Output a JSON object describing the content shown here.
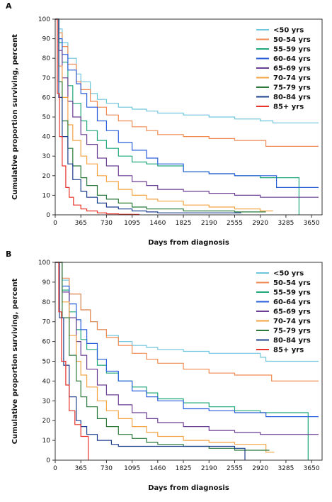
{
  "chart_data": [
    {
      "panel": "A",
      "type": "line",
      "xlabel": "Days from diagnosis",
      "ylabel": "Cumulative proportion surviving, percent",
      "xlim": [
        0,
        3800
      ],
      "ylim": [
        0,
        100
      ],
      "xticks": [
        0,
        365,
        730,
        1095,
        1460,
        1825,
        2190,
        2555,
        2920,
        3285,
        3650
      ],
      "yticks": [
        0,
        10,
        20,
        30,
        40,
        50,
        60,
        70,
        80,
        90,
        100
      ],
      "legend_position": "top-right",
      "series": [
        {
          "name": "<50 yrs",
          "color": "#6ec6dd",
          "x": [
            0,
            50,
            100,
            180,
            300,
            365,
            500,
            600,
            730,
            900,
            1095,
            1300,
            1460,
            1825,
            2190,
            2555,
            2920,
            3100,
            3650,
            3750
          ],
          "y": [
            100,
            95,
            88,
            80,
            72,
            68,
            62,
            59,
            57,
            55,
            54,
            53,
            52,
            51,
            50,
            49,
            48,
            47,
            47,
            47
          ]
        },
        {
          "name": "50-54 yrs",
          "color": "#f08a50",
          "x": [
            0,
            50,
            100,
            180,
            300,
            365,
            500,
            600,
            730,
            900,
            1095,
            1300,
            1460,
            1825,
            2190,
            2555,
            2920,
            3000,
            3650,
            3750
          ],
          "y": [
            100,
            93,
            86,
            77,
            68,
            64,
            58,
            55,
            51,
            48,
            45,
            43,
            41,
            40,
            39,
            38,
            38,
            35,
            35,
            35
          ]
        },
        {
          "name": "55-59 yrs",
          "color": "#1fa879",
          "x": [
            0,
            50,
            100,
            180,
            250,
            365,
            450,
            600,
            730,
            900,
            1095,
            1300,
            1460,
            1825,
            2190,
            2555,
            2920,
            3300,
            3470,
            3471
          ],
          "y": [
            100,
            88,
            78,
            66,
            57,
            48,
            43,
            38,
            34,
            30,
            27,
            26,
            25,
            22,
            21,
            20,
            19,
            19,
            19,
            0
          ]
        },
        {
          "name": "60-64 yrs",
          "color": "#2a5fdc",
          "x": [
            0,
            50,
            100,
            180,
            300,
            365,
            450,
            600,
            730,
            900,
            1095,
            1300,
            1460,
            1825,
            2190,
            2555,
            2920,
            3150,
            3151,
            3650,
            3750
          ],
          "y": [
            100,
            90,
            82,
            74,
            67,
            62,
            55,
            48,
            43,
            37,
            33,
            29,
            26,
            22,
            21,
            20,
            20,
            20,
            14,
            14,
            14
          ]
        },
        {
          "name": "65-69 yrs",
          "color": "#6b3d94",
          "x": [
            0,
            50,
            100,
            180,
            250,
            365,
            450,
            600,
            730,
            900,
            1095,
            1300,
            1460,
            1825,
            2190,
            2555,
            2920,
            3650,
            3750
          ],
          "y": [
            100,
            84,
            70,
            58,
            50,
            41,
            36,
            29,
            25,
            20,
            17,
            15,
            13,
            12,
            11,
            10,
            9,
            9,
            9
          ]
        },
        {
          "name": "70-74 yrs",
          "color": "#f4a444",
          "x": [
            0,
            50,
            100,
            180,
            250,
            365,
            450,
            600,
            730,
            900,
            1095,
            1300,
            1460,
            1825,
            2190,
            2555,
            2920,
            3100
          ],
          "y": [
            100,
            76,
            60,
            46,
            38,
            30,
            26,
            20,
            17,
            13,
            10,
            8,
            7,
            5,
            4,
            3,
            2,
            2
          ]
        },
        {
          "name": "75-79 yrs",
          "color": "#2b7a3b",
          "x": [
            0,
            50,
            100,
            180,
            250,
            365,
            450,
            600,
            730,
            900,
            1095,
            1300,
            1460,
            1825,
            2190,
            2555,
            2920,
            3000
          ],
          "y": [
            100,
            68,
            48,
            34,
            25,
            19,
            15,
            10,
            8,
            6,
            4,
            3,
            3,
            2,
            2,
            1.5,
            1.5,
            1.5
          ]
        },
        {
          "name": "80-84 yrs",
          "color": "#1d3f8f",
          "x": [
            0,
            50,
            100,
            180,
            250,
            365,
            450,
            600,
            730,
            900,
            1095,
            1300,
            1460,
            1825,
            2190,
            2555,
            2650
          ],
          "y": [
            100,
            60,
            40,
            26,
            18,
            12,
            9,
            6,
            4,
            3,
            2,
            1.5,
            1,
            1,
            1,
            1,
            1
          ]
        },
        {
          "name": "85+ yrs",
          "color": "#e8322a",
          "x": [
            0,
            30,
            60,
            100,
            150,
            200,
            260,
            365,
            450,
            600,
            730,
            900,
            1095,
            1200
          ],
          "y": [
            100,
            62,
            40,
            25,
            14,
            9,
            5,
            3,
            2,
            1,
            0.5,
            0.3,
            0.2,
            0.2
          ]
        }
      ]
    },
    {
      "panel": "B",
      "type": "line",
      "xlabel": "Days from diagnosis",
      "ylabel": "Cumulative proportion surviving, percent",
      "xlim": [
        0,
        3800
      ],
      "ylim": [
        0,
        100
      ],
      "xticks": [
        0,
        365,
        730,
        1095,
        1460,
        1825,
        2190,
        2555,
        2920,
        3285,
        3650
      ],
      "yticks": [
        0,
        10,
        20,
        30,
        40,
        50,
        60,
        70,
        80,
        90,
        100
      ],
      "legend_position": "top-right",
      "series": [
        {
          "name": "<50 yrs",
          "color": "#6ec6dd",
          "x": [
            0,
            100,
            200,
            365,
            500,
            600,
            730,
            900,
            1095,
            1300,
            1460,
            1825,
            2190,
            2555,
            2920,
            3000,
            3650,
            3750
          ],
          "y": [
            100,
            91,
            84,
            76,
            70,
            66,
            63,
            60,
            58,
            57,
            56,
            55,
            54,
            54,
            52,
            50,
            50,
            50
          ]
        },
        {
          "name": "50-54 yrs",
          "color": "#f08a50",
          "x": [
            0,
            100,
            200,
            365,
            500,
            600,
            730,
            900,
            1095,
            1300,
            1460,
            1825,
            2190,
            2555,
            2920,
            3080,
            3081,
            3650,
            3750
          ],
          "y": [
            100,
            92,
            84,
            76,
            70,
            66,
            62,
            58,
            54,
            51,
            49,
            46,
            44,
            43,
            43,
            43,
            40,
            40,
            40
          ]
        },
        {
          "name": "55-59 yrs",
          "color": "#1fa879",
          "x": [
            0,
            100,
            200,
            300,
            365,
            450,
            600,
            730,
            900,
            1095,
            1300,
            1460,
            1825,
            2190,
            2555,
            2920,
            3300,
            3600,
            3601
          ],
          "y": [
            100,
            86,
            75,
            66,
            61,
            56,
            48,
            44,
            40,
            37,
            34,
            31,
            29,
            27,
            25,
            24,
            24,
            24,
            0
          ]
        },
        {
          "name": "60-64 yrs",
          "color": "#2a5fdc",
          "x": [
            0,
            100,
            200,
            300,
            365,
            450,
            600,
            730,
            900,
            1095,
            1300,
            1460,
            1825,
            2190,
            2555,
            2920,
            3000,
            3001,
            3650,
            3750
          ],
          "y": [
            100,
            88,
            79,
            71,
            66,
            59,
            51,
            45,
            40,
            35,
            32,
            30,
            26,
            25,
            24,
            24,
            24,
            22,
            22,
            22
          ]
        },
        {
          "name": "65-69 yrs",
          "color": "#6b3d94",
          "x": [
            0,
            100,
            200,
            300,
            365,
            450,
            600,
            730,
            900,
            1095,
            1300,
            1460,
            1825,
            2190,
            2555,
            2920,
            3650,
            3750
          ],
          "y": [
            100,
            85,
            72,
            60,
            53,
            46,
            38,
            33,
            28,
            24,
            21,
            19,
            17,
            15,
            14,
            13,
            13,
            13
          ]
        },
        {
          "name": "70-74 yrs",
          "color": "#f4a444",
          "x": [
            0,
            100,
            200,
            300,
            365,
            450,
            600,
            730,
            900,
            1095,
            1300,
            1460,
            1825,
            2190,
            2555,
            2920,
            3000,
            3001,
            3120
          ],
          "y": [
            100,
            80,
            63,
            50,
            43,
            37,
            30,
            25,
            21,
            17,
            14,
            12,
            10,
            9,
            8,
            8,
            8,
            4,
            4
          ]
        },
        {
          "name": "75-79 yrs",
          "color": "#2b7a3b",
          "x": [
            0,
            100,
            200,
            300,
            365,
            450,
            600,
            730,
            900,
            1095,
            1300,
            1460,
            1825,
            2190,
            2555,
            2920,
            3050
          ],
          "y": [
            100,
            72,
            53,
            40,
            32,
            27,
            21,
            17,
            13,
            11,
            9,
            8,
            7,
            6,
            5,
            5,
            5
          ]
        },
        {
          "name": "80-84 yrs",
          "color": "#1d3f8f",
          "x": [
            0,
            60,
            120,
            200,
            300,
            365,
            450,
            600,
            800,
            900,
            1095,
            1300,
            1460,
            1825,
            2190,
            2555,
            2700,
            2701
          ],
          "y": [
            100,
            72,
            48,
            32,
            20,
            17,
            13,
            10,
            8,
            7,
            7,
            7,
            7,
            7,
            7,
            6,
            6,
            0
          ]
        },
        {
          "name": "85+ yrs",
          "color": "#e8322a",
          "x": [
            0,
            50,
            90,
            150,
            200,
            280,
            365,
            460,
            470
          ],
          "y": [
            100,
            75,
            50,
            38,
            25,
            18,
            12,
            12,
            0
          ]
        }
      ]
    }
  ]
}
